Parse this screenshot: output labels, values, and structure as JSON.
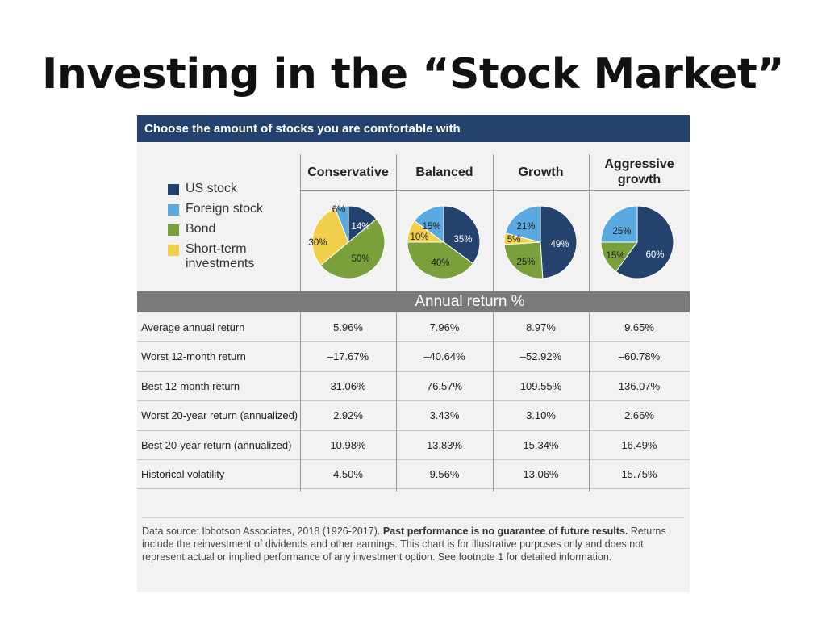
{
  "slide": {
    "title": "Investing in the “Stock Market”"
  },
  "panel": {
    "banner": "Choose the amount of stocks you are comfortable with",
    "annual_return_label": "Annual return %"
  },
  "legend": [
    {
      "label": "US stock",
      "color": "#23426e"
    },
    {
      "label": "Foreign stock",
      "color": "#5aa9e0"
    },
    {
      "label": "Bond",
      "color": "#7aa03c"
    },
    {
      "label": "Short-term investments",
      "line1": "Short-term",
      "line2": "investments",
      "color": "#f2d04b"
    }
  ],
  "chart_data": {
    "type": "pie",
    "series_labels": [
      "US stock",
      "Foreign stock",
      "Bond",
      "Short-term investments"
    ],
    "colors": [
      "#23426e",
      "#5aa9e0",
      "#7aa03c",
      "#f2d04b"
    ],
    "pies": [
      {
        "name": "Conservative",
        "slices": [
          {
            "label": "US stock",
            "value": 14,
            "text": "14%"
          },
          {
            "label": "Bond",
            "value": 50,
            "text": "50%"
          },
          {
            "label": "Short-term investments",
            "value": 30,
            "text": "30%"
          },
          {
            "label": "Foreign stock",
            "value": 6,
            "text": "6%"
          }
        ]
      },
      {
        "name": "Balanced",
        "slices": [
          {
            "label": "US stock",
            "value": 35,
            "text": "35%"
          },
          {
            "label": "Bond",
            "value": 40,
            "text": "40%"
          },
          {
            "label": "Short-term investments",
            "value": 10,
            "text": "10%"
          },
          {
            "label": "Foreign stock",
            "value": 15,
            "text": "15%"
          }
        ]
      },
      {
        "name": "Growth",
        "slices": [
          {
            "label": "US stock",
            "value": 49,
            "text": "49%"
          },
          {
            "label": "Bond",
            "value": 25,
            "text": "25%"
          },
          {
            "label": "Short-term investments",
            "value": 5,
            "text": "5%"
          },
          {
            "label": "Foreign stock",
            "value": 21,
            "text": "21%"
          }
        ]
      },
      {
        "name": "Aggressive growth",
        "slices": [
          {
            "label": "US stock",
            "value": 60,
            "text": "60%"
          },
          {
            "label": "Bond",
            "value": 15,
            "text": "15%"
          },
          {
            "label": "Foreign stock",
            "value": 25,
            "text": "25%"
          }
        ]
      }
    ]
  },
  "columns": [
    {
      "header": "Conservative"
    },
    {
      "header": "Balanced"
    },
    {
      "header": "Growth"
    },
    {
      "header": "Aggressive growth",
      "line1": "Aggressive",
      "line2": "growth"
    }
  ],
  "table": {
    "rows": [
      {
        "label": "Average annual return",
        "values": [
          "5.96%",
          "7.96%",
          "8.97%",
          "9.65%"
        ]
      },
      {
        "label": "Worst 12-month return",
        "values": [
          "–17.67%",
          "–40.64%",
          "–52.92%",
          "–60.78%"
        ]
      },
      {
        "label": "Best 12-month return",
        "values": [
          "31.06%",
          "76.57%",
          "109.55%",
          "136.07%"
        ]
      },
      {
        "label": "Worst 20-year return (annualized)",
        "values": [
          "2.92%",
          "3.43%",
          "3.10%",
          "2.66%"
        ]
      },
      {
        "label": "Best 20-year return (annualized)",
        "values": [
          "10.98%",
          "13.83%",
          "15.34%",
          "16.49%"
        ]
      },
      {
        "label": "Historical volatility",
        "values": [
          "4.50%",
          "9.56%",
          "13.06%",
          "15.75%"
        ]
      }
    ]
  },
  "footnote": {
    "source": "Data source: Ibbotson Associates, 2018 (1926-2017). ",
    "bold": "Past performance is no guarantee of future results.",
    "rest": " Returns include the reinvestment of dividends and other earnings. This chart is for illustrative purposes only and does not represent actual or implied performance of any investment option. See footnote 1 for detailed information."
  }
}
